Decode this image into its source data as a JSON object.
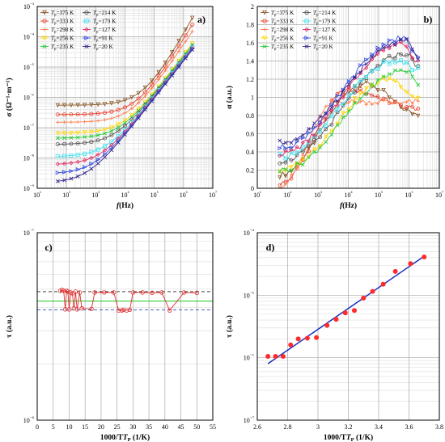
{
  "chart_data": [
    {
      "panel": "a)",
      "type": "line",
      "ylabel": "σ (Ω⁻¹·m⁻¹)",
      "xlabel": "f(Hz)",
      "xscale": "log",
      "yscale": "log",
      "xlim": [
        10,
        10000000
      ],
      "ylim": [
        1e-09,
        0.001
      ],
      "x_ticks": [
        "10¹",
        "10²",
        "10³",
        "10⁴",
        "10⁵",
        "10⁶",
        "10⁷"
      ],
      "y_ticks": [
        "10⁻⁹",
        "10⁻⁸",
        "10⁻⁷",
        "10⁻⁶",
        "10⁻⁵",
        "10⁻⁴",
        "10⁻³"
      ],
      "grid": true,
      "legend_position": "top-left",
      "series": [
        {
          "name": "T_p=375 K",
          "color": "#8b5a2b",
          "marker": "triangle-down",
          "low": 5.5e-07,
          "high": 0.00042
        },
        {
          "name": "T_p=333 K",
          "color": "#e8402c",
          "marker": "circle",
          "low": 2.7e-07,
          "high": 0.00025
        },
        {
          "name": "T_p=298 K",
          "color": "#ff7f50",
          "marker": "plus",
          "low": 1.5e-07,
          "high": 0.00015
        },
        {
          "name": "T_p=256 K",
          "color": "#ffd700",
          "marker": "triangle-down",
          "low": 6.5e-08,
          "high": 6e-05
        },
        {
          "name": "T_p=235 K",
          "color": "#2ecc40",
          "marker": "cross",
          "low": 4.5e-08,
          "high": 5.5e-05
        },
        {
          "name": "T_p=214 K",
          "color": "#555555",
          "marker": "circle",
          "low": 2.8e-08,
          "high": 4.8e-05
        },
        {
          "name": "T_p=179 K",
          "color": "#40e0f0",
          "marker": "square",
          "low": 1.1e-08,
          "high": 4.5e-05
        },
        {
          "name": "T_p=127 K",
          "color": "#e0306a",
          "marker": "diamond",
          "low": 6e-09,
          "high": 4.2e-05
        },
        {
          "name": "T_p=91 K",
          "color": "#3a50e0",
          "marker": "triangle-right",
          "low": 3e-09,
          "high": 4e-05
        },
        {
          "name": "T_p=20 K",
          "color": "#3b2a8f",
          "marker": "x",
          "low": 1.5e-09,
          "high": 3.7e-05
        }
      ]
    },
    {
      "panel": "b)",
      "type": "line",
      "ylabel": "α (a.u.)",
      "xlabel": "f(Hz)",
      "xscale": "log",
      "xlim": [
        10,
        10000000
      ],
      "ylim": [
        0,
        2
      ],
      "x_ticks": [
        "10¹",
        "10²",
        "10³",
        "10⁴",
        "10⁵",
        "10⁶",
        "10⁷"
      ],
      "y_ticks": [
        "0",
        "0.2",
        "0.4",
        "0.6",
        "0.8",
        "1",
        "1.2",
        "1.4",
        "1.6",
        "1.8",
        "2"
      ],
      "grid": true,
      "legend_position": "top-left",
      "series": [
        {
          "name": "T_p=375 K",
          "color": "#8b5a2b",
          "marker": "triangle-down",
          "start": 0.15,
          "peak": 1.15,
          "peak_logf": 4.5,
          "end": 0.82
        },
        {
          "name": "T_p=333 K",
          "color": "#e8402c",
          "marker": "circle",
          "start": 0.05,
          "peak": 1.08,
          "peak_logf": 4.0,
          "end": 0.88
        },
        {
          "name": "T_p=298 K",
          "color": "#ff7f50",
          "marker": "plus",
          "start": 0.03,
          "peak": 0.95,
          "peak_logf": 3.6,
          "end": 0.95
        },
        {
          "name": "T_p=256 K",
          "color": "#ffd700",
          "marker": "triangle-down",
          "start": 0.2,
          "peak": 1.2,
          "peak_logf": 5.4,
          "end": 1.0
        },
        {
          "name": "T_p=235 K",
          "color": "#2ecc40",
          "marker": "cross",
          "start": 0.2,
          "peak": 1.3,
          "peak_logf": 5.9,
          "end": 1.15
        },
        {
          "name": "T_p=214 K",
          "color": "#555555",
          "marker": "circle",
          "start": 0.3,
          "peak": 1.48,
          "peak_logf": 5.9,
          "end": 1.35
        },
        {
          "name": "T_p=179 K",
          "color": "#40e0f0",
          "marker": "square",
          "start": 0.35,
          "peak": 1.4,
          "peak_logf": 5.6,
          "end": 1.3
        },
        {
          "name": "T_p=127 K",
          "color": "#e0306a",
          "marker": "diamond",
          "start": 0.38,
          "peak": 1.6,
          "peak_logf": 5.8,
          "end": 1.4
        },
        {
          "name": "T_p=91 K",
          "color": "#3a50e0",
          "marker": "triangle-right",
          "start": 0.45,
          "peak": 1.65,
          "peak_logf": 5.8,
          "end": 1.45
        },
        {
          "name": "T_p=20 K",
          "color": "#3b2a8f",
          "marker": "x",
          "start": 0.5,
          "peak": 1.62,
          "peak_logf": 5.9,
          "end": 1.42
        }
      ]
    },
    {
      "panel": "c)",
      "type": "scatter",
      "ylabel": "τ (a.u.)",
      "xlabel": "1000/T_P (1/K)",
      "yscale": "log",
      "xlim": [
        0,
        55
      ],
      "ylim": [
        1e-08,
        1e-07
      ],
      "x_ticks": [
        "0",
        "5",
        "10",
        "15",
        "20",
        "25",
        "30",
        "35",
        "40",
        "45",
        "50",
        "55"
      ],
      "y_ticks": [
        "10⁻⁸",
        "10⁻⁷"
      ],
      "grid": true,
      "mean_line": 4.32e-08,
      "band_upper": 4.85e-08,
      "band_lower": 3.88e-08,
      "x": [
        7.2,
        7.8,
        8.3,
        8.8,
        9.2,
        9.6,
        10.0,
        10.5,
        11.0,
        11.5,
        12.0,
        12.5,
        13.3,
        14.0,
        17.0,
        18.0,
        21.0,
        24.0,
        25.5,
        26.5,
        27.0,
        28.0,
        29.0,
        30.0,
        33.0,
        36.0,
        39.0,
        41.5,
        46.0,
        50.0
      ],
      "y": [
        4.9e-08,
        4.95e-08,
        4.9e-08,
        3.9e-08,
        4.9e-08,
        4.85e-08,
        3.9e-08,
        4.8e-08,
        4.75e-08,
        3.95e-08,
        4.85e-08,
        3.9e-08,
        4.8e-08,
        3.95e-08,
        3.92e-08,
        4.8e-08,
        4.8e-08,
        4.8e-08,
        3.85e-08,
        3.85e-08,
        3.88e-08,
        3.85e-08,
        3.88e-08,
        4.8e-08,
        4.8e-08,
        4.78e-08,
        4.8e-08,
        3.85e-08,
        4.8e-08,
        4.78e-08
      ]
    },
    {
      "panel": "d)",
      "type": "scatter",
      "ylabel": "τ (a.u.)",
      "xlabel": "1000/T_P (1/K)",
      "yscale": "log",
      "xlim": [
        2.6,
        3.8
      ],
      "ylim": [
        1e-07,
        0.0001
      ],
      "x_ticks": [
        "2.6",
        "2.8",
        "3",
        "3.2",
        "3.4",
        "3.6",
        "3.8"
      ],
      "y_ticks": [
        "10⁻⁷",
        "10⁻⁶",
        "10⁻⁵",
        "10⁻⁴"
      ],
      "grid": true,
      "fit_line": {
        "x": [
          2.67,
          3.7
        ],
        "y": [
          8e-07,
          4.2e-05
        ]
      },
      "x": [
        2.67,
        2.72,
        2.77,
        2.82,
        2.87,
        2.93,
        2.99,
        3.06,
        3.12,
        3.18,
        3.24,
        3.3,
        3.36,
        3.43,
        3.51,
        3.61,
        3.7
      ],
      "y": [
        1.05e-06,
        1.05e-06,
        1.05e-06,
        1.6e-06,
        2e-06,
        2.05e-06,
        2.1e-06,
        3.3e-06,
        4.1e-06,
        5.2e-06,
        5.7e-06,
        9e-06,
        1.15e-05,
        1.5e-05,
        2.4e-05,
        3.2e-05,
        4.1e-05
      ]
    }
  ]
}
